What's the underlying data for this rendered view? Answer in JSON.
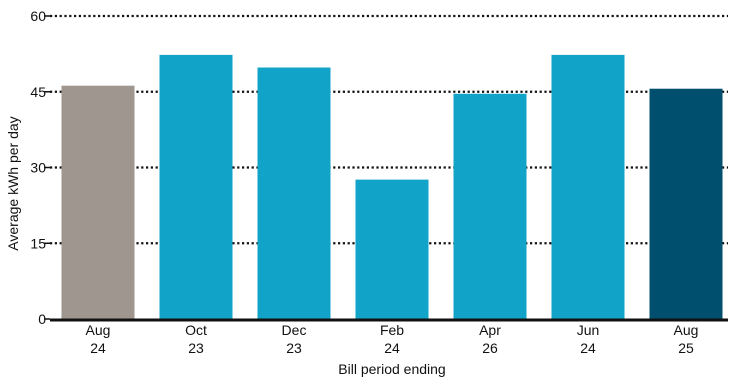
{
  "chart_data": {
    "type": "bar",
    "ylabel": "Average kWh per day",
    "xlabel": "Bill period ending",
    "ylim": [
      0,
      60
    ],
    "yticks": [
      0,
      15,
      30,
      45,
      60
    ],
    "grid": "horizontal-dotted",
    "categories": [
      {
        "line1": "Aug",
        "line2": "24"
      },
      {
        "line1": "Oct",
        "line2": "23"
      },
      {
        "line1": "Dec",
        "line2": "23"
      },
      {
        "line1": "Feb",
        "line2": "24"
      },
      {
        "line1": "Apr",
        "line2": "26"
      },
      {
        "line1": "Jun",
        "line2": "24"
      },
      {
        "line1": "Aug",
        "line2": "25"
      }
    ],
    "values": [
      46.2,
      52.3,
      49.8,
      27.6,
      44.6,
      52.3,
      45.6
    ],
    "colors": [
      "#9e968f",
      "#12a3c8",
      "#12a3c8",
      "#12a3c8",
      "#12a3c8",
      "#12a3c8",
      "#004f6e"
    ]
  }
}
